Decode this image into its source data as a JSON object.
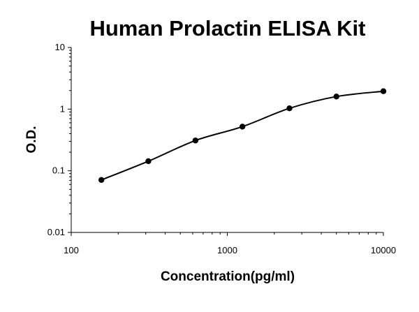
{
  "chart_data": {
    "type": "scatter",
    "title": "Human Prolactin ELISA Kit",
    "xlabel": "Concentration(pg/ml)",
    "ylabel": "O.D.",
    "xscale": "log",
    "yscale": "log",
    "xlim": [
      100,
      10000
    ],
    "ylim": [
      0.01,
      10
    ],
    "x_ticks": [
      "100",
      "1000",
      "10000"
    ],
    "y_ticks": [
      "0.01",
      "0.1",
      "1",
      "10"
    ],
    "grid": false,
    "legend": "none",
    "series": [
      {
        "x": [
          156,
          312,
          625,
          1250,
          2500,
          5000,
          10000
        ],
        "y": [
          0.071,
          0.143,
          0.31,
          0.52,
          1.03,
          1.6,
          1.95
        ],
        "marker": "circle",
        "color": "#000000",
        "fit_curve": true
      }
    ]
  }
}
